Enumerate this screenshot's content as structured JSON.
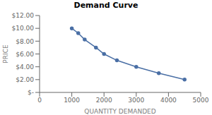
{
  "chart_data": {
    "type": "line",
    "title": "Demand Curve",
    "x_label": "QUANTITY DEMANDED",
    "y_label": "PRICE",
    "x": [
      1000,
      1200,
      1400,
      1750,
      2000,
      2400,
      3000,
      3700,
      4500
    ],
    "values": [
      10.0,
      9.25,
      8.25,
      7.0,
      6.0,
      5.0,
      4.0,
      3.0,
      2.0
    ],
    "color": "#4a6fa5",
    "marker": "circle",
    "xlim": [
      0,
      5000
    ],
    "xticks": [
      0,
      1000,
      2000,
      3000,
      4000,
      5000
    ],
    "ylim": [
      0,
      12.0
    ],
    "yticks": [
      {
        "value": 0,
        "label": "$-"
      },
      {
        "value": 2.0,
        "label": "$2.00"
      },
      {
        "value": 4.0,
        "label": "$4.00"
      },
      {
        "value": 6.0,
        "label": "$6.00"
      },
      {
        "value": 8.0,
        "label": "$8.00"
      },
      {
        "value": 10.0,
        "label": "$10.00"
      },
      {
        "value": 12.0,
        "label": "$12.00"
      }
    ],
    "grid": false
  }
}
